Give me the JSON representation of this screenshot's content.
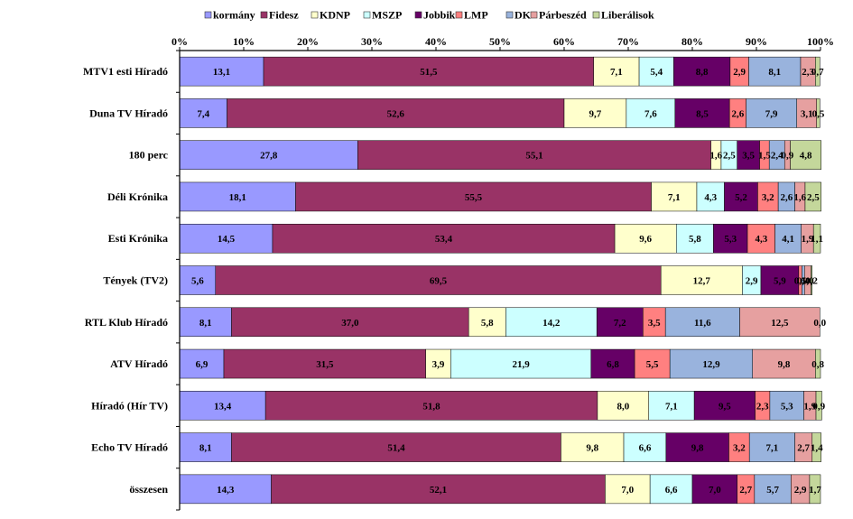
{
  "chart_data": {
    "type": "bar",
    "orientation": "horizontal",
    "stacked": "percent",
    "title": "",
    "xlabel": "",
    "ylabel": "",
    "xlim": [
      0,
      100
    ],
    "ticks": [
      "0%",
      "10%",
      "20%",
      "30%",
      "40%",
      "50%",
      "60%",
      "70%",
      "80%",
      "90%",
      "100%"
    ],
    "legend_position": "top",
    "categories": [
      "MTV1 esti Híradó",
      "Duna TV Híradó",
      "180 perc",
      "Déli Krónika",
      "Esti Krónika",
      "Tények (TV2)",
      "RTL Klub Híradó",
      "ATV Híradó",
      "Híradó (Hír TV)",
      "Echo TV Híradó",
      "összesen"
    ],
    "series": [
      {
        "name": "kormány",
        "color": "#9999ff",
        "values": [
          13.1,
          7.4,
          27.8,
          18.1,
          14.5,
          5.6,
          8.1,
          6.9,
          13.4,
          8.1,
          14.3
        ],
        "labels": [
          "13,1",
          "7,4",
          "27,8",
          "18,1",
          "14,5",
          "5,6",
          "8,1",
          "6,9",
          "13,4",
          "8,1",
          "14,3"
        ]
      },
      {
        "name": "Fidesz",
        "color": "#993366",
        "values": [
          51.5,
          52.6,
          55.1,
          55.5,
          53.4,
          69.5,
          37.0,
          31.5,
          51.8,
          51.4,
          52.1
        ],
        "labels": [
          "51,5",
          "52,6",
          "55,1",
          "55,5",
          "53,4",
          "69,5",
          "37,0",
          "31,5",
          "51,8",
          "51,4",
          "52,1"
        ]
      },
      {
        "name": "KDNP",
        "color": "#ffffcc",
        "values": [
          7.1,
          9.7,
          1.6,
          7.1,
          9.6,
          12.7,
          5.8,
          3.9,
          8.0,
          9.8,
          7.0
        ],
        "labels": [
          "7,1",
          "9,7",
          "1,6",
          "7,1",
          "9,6",
          "12,7",
          "5,8",
          "3,9",
          "8,0",
          "9,8",
          "7,0"
        ]
      },
      {
        "name": "MSZP",
        "color": "#ccffff",
        "values": [
          5.4,
          7.6,
          2.5,
          4.3,
          5.8,
          2.9,
          14.2,
          21.9,
          7.1,
          6.6,
          6.6
        ],
        "labels": [
          "5,4",
          "7,6",
          "2,5",
          "4,3",
          "5,8",
          "2,9",
          "14,2",
          "21,9",
          "7,1",
          "6,6",
          "6,6"
        ]
      },
      {
        "name": "Jobbik",
        "color": "#660066",
        "values": [
          8.8,
          8.5,
          3.5,
          5.2,
          5.3,
          5.9,
          7.2,
          6.8,
          9.5,
          9.8,
          7.0
        ],
        "labels": [
          "8,8",
          "8,5",
          "3,5",
          "5,2",
          "5,3",
          "5,9",
          "7,2",
          "6,8",
          "9,5",
          "9,8",
          "7,0"
        ]
      },
      {
        "name": "LMP",
        "color": "#ff8080",
        "values": [
          2.9,
          2.6,
          1.5,
          3.2,
          4.3,
          0.5,
          3.5,
          5.5,
          2.3,
          3.2,
          2.7
        ],
        "labels": [
          "2,9",
          "2,6",
          "1,5",
          "3,2",
          "4,3",
          "0,5",
          "3,5",
          "5,5",
          "2,3",
          "3,2",
          "2,7"
        ]
      },
      {
        "name": "DK",
        "color": "#99b3dd",
        "values": [
          8.1,
          7.9,
          2.4,
          2.6,
          4.1,
          0.4,
          11.6,
          12.9,
          5.3,
          7.1,
          5.7
        ],
        "labels": [
          "8,1",
          "7,9",
          "2,4",
          "2,6",
          "4,1",
          "0,4",
          "11,6",
          "12,9",
          "5,3",
          "7,1",
          "5,7"
        ]
      },
      {
        "name": "Párbeszéd",
        "color": "#e6a0a0",
        "values": [
          2.3,
          3.1,
          0.9,
          1.6,
          1.9,
          1.0,
          12.5,
          9.8,
          1.9,
          2.7,
          2.9
        ],
        "labels": [
          "2,3",
          "3,1",
          "0,9",
          "1,6",
          "1,9",
          "1,0",
          "12,5",
          "9,8",
          "1,9",
          "2,7",
          "2,9"
        ]
      },
      {
        "name": "Liberálisok",
        "color": "#c4d79b",
        "values": [
          0.7,
          0.5,
          4.8,
          2.5,
          1.1,
          0.2,
          0.0,
          0.8,
          0.9,
          1.4,
          1.7
        ],
        "labels": [
          "0,7",
          "0,5",
          "4,8",
          "2,5",
          "1,1",
          "0,2",
          "0,0",
          "0,8",
          "0,9",
          "1,4",
          "1,7"
        ]
      }
    ]
  }
}
